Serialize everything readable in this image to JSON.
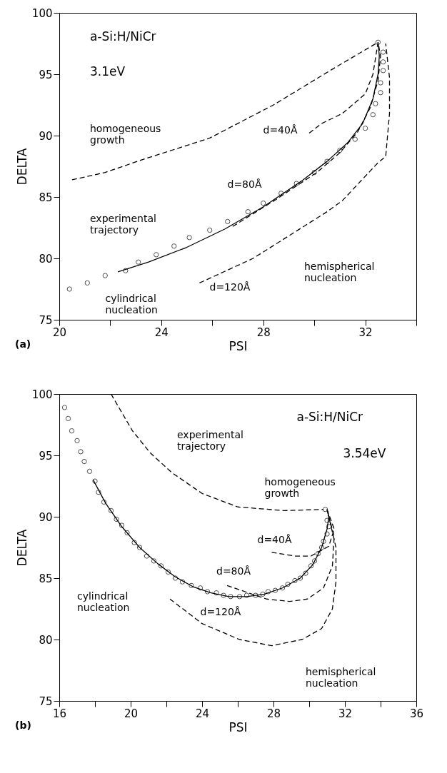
{
  "chart_data": [
    {
      "type": "line",
      "xlabel": "PSI",
      "ylabel": "DELTA",
      "xlim": [
        20,
        34
      ],
      "ylim": [
        75,
        100
      ],
      "xticks": [
        20,
        {
          "value": 22,
          "label": null
        },
        24,
        {
          "value": 26,
          "label": null
        },
        28,
        {
          "value": 30,
          "label": null
        },
        32,
        {
          "value": 34,
          "label": null
        }
      ],
      "yticks": [
        75,
        80,
        85,
        90,
        95,
        100
      ],
      "grid": false,
      "series": [
        {
          "type": "scatter",
          "marker": "circle",
          "color": "#000000",
          "x": [
            20.4,
            21.1,
            21.8,
            22.6,
            23.1,
            23.8,
            24.5,
            25.1,
            25.9,
            26.6,
            27.4,
            28.0,
            28.7,
            29.3,
            30.0,
            30.5,
            31.0,
            31.6,
            32.0,
            32.3,
            32.4,
            32.6,
            32.6,
            32.7,
            32.7,
            32.7,
            32.5
          ],
          "values": [
            77.5,
            78.0,
            78.6,
            79.0,
            79.7,
            80.3,
            81.0,
            81.7,
            82.3,
            83.0,
            83.8,
            84.5,
            85.3,
            86.1,
            87.0,
            87.9,
            88.8,
            89.7,
            90.6,
            91.7,
            92.6,
            93.5,
            94.3,
            95.3,
            96.0,
            96.8,
            97.6
          ]
        },
        {
          "type": "line",
          "line_style": "solid",
          "color": "#000000",
          "x": [
            22.3,
            23.5,
            25.0,
            26.5,
            28.0,
            29.5,
            30.5,
            31.3,
            31.9,
            32.3,
            32.5,
            32.55,
            32.5
          ],
          "values": [
            78.9,
            79.7,
            80.9,
            82.4,
            84.2,
            86.3,
            87.9,
            89.4,
            91.0,
            93.0,
            95.0,
            96.5,
            97.6
          ]
        },
        {
          "type": "line",
          "line_style": "dashed",
          "color": "#000000",
          "x": [
            20.5,
            21.8,
            23.2,
            25.9,
            28.4,
            30.7,
            32.5
          ],
          "values": [
            86.4,
            87.0,
            88.0,
            89.8,
            92.5,
            95.4,
            97.6
          ]
        },
        {
          "type": "line",
          "line_style": "dashed",
          "color": "#000000",
          "x": [
            29.8,
            30.3,
            31.1,
            32.0,
            32.3,
            32.5
          ],
          "values": [
            90.2,
            91.0,
            91.8,
            93.4,
            95.0,
            97.6
          ]
        },
        {
          "type": "line",
          "line_style": "dashed",
          "color": "#000000",
          "x": [
            26.8,
            28.5,
            30.1,
            31.0,
            31.7,
            32.2,
            32.5,
            32.6,
            32.5
          ],
          "values": [
            82.6,
            84.8,
            87.0,
            88.6,
            90.3,
            92.3,
            94.5,
            96.5,
            97.6
          ]
        },
        {
          "type": "line",
          "line_style": "dashed",
          "color": "#000000",
          "x": [
            25.5,
            27.6,
            30.5,
            31.1,
            32.5,
            32.8,
            32.95,
            32.95,
            32.8
          ],
          "values": [
            78.0,
            80.0,
            83.8,
            84.7,
            87.8,
            88.3,
            91.8,
            94.7,
            97.5
          ]
        }
      ],
      "annotations": [
        "a-Si:H/NiCr",
        "3.1eV",
        "homogeneous growth",
        "d=40Å",
        "d=80Å",
        "experimental trajectory",
        "cylindrical nucleation",
        "d=120Å",
        "hemispherical nucleation",
        "(a)"
      ]
    },
    {
      "type": "line",
      "xlabel": "PSI",
      "ylabel": "DELTA",
      "xlim": [
        16,
        36
      ],
      "ylim": [
        75,
        100
      ],
      "xticks": [
        16,
        {
          "value": 18,
          "label": null
        },
        20,
        {
          "value": 22,
          "label": null
        },
        24,
        {
          "value": 26,
          "label": null
        },
        28,
        {
          "value": 30,
          "label": null
        },
        32,
        {
          "value": 34,
          "label": null
        },
        36
      ],
      "yticks": [
        75,
        80,
        85,
        90,
        95,
        100
      ],
      "grid": false,
      "series": [
        {
          "type": "scatter",
          "marker": "circle",
          "color": "#000000",
          "x": [
            16.3,
            16.5,
            16.7,
            17.0,
            17.2,
            17.4,
            17.7,
            18.0,
            18.2,
            18.5,
            18.9,
            19.2,
            19.5,
            19.8,
            20.2,
            20.5,
            20.9,
            21.3,
            21.7,
            22.1,
            22.5,
            22.9,
            23.4,
            23.9,
            24.3,
            24.8,
            25.2,
            25.6,
            26.1,
            26.5,
            27.0,
            27.4,
            27.7,
            28.1,
            28.5,
            28.8,
            29.2,
            29.5,
            29.8,
            30.1,
            30.3,
            30.5,
            30.7,
            30.8,
            31.0,
            31.1,
            31.0,
            30.9
          ],
          "values": [
            98.9,
            98.0,
            97.0,
            96.2,
            95.3,
            94.5,
            93.7,
            92.9,
            92.0,
            91.2,
            90.5,
            89.8,
            89.3,
            88.7,
            87.9,
            87.5,
            86.8,
            86.4,
            86.0,
            85.5,
            85.0,
            84.7,
            84.4,
            84.2,
            83.9,
            83.8,
            83.6,
            83.5,
            83.5,
            83.6,
            83.6,
            83.7,
            83.9,
            84.0,
            84.2,
            84.5,
            84.8,
            85.0,
            85.4,
            86.0,
            86.4,
            87.0,
            87.5,
            88.0,
            88.6,
            89.2,
            89.7,
            90.6
          ]
        },
        {
          "type": "line",
          "line_style": "solid",
          "color": "#000000",
          "x": [
            17.9,
            18.6,
            19.5,
            20.5,
            21.5,
            22.5,
            23.5,
            24.5,
            25.5,
            26.5,
            27.5,
            28.5,
            29.5,
            30.2,
            30.7,
            31.0,
            31.1,
            31.0
          ],
          "values": [
            93.0,
            91.1,
            89.2,
            87.5,
            86.2,
            85.1,
            84.3,
            83.8,
            83.5,
            83.5,
            83.7,
            84.2,
            85.0,
            86.1,
            87.5,
            89.0,
            90.0,
            90.6
          ]
        },
        {
          "type": "line",
          "line_style": "dashed",
          "color": "#000000",
          "x": [
            18.9,
            20.1,
            21.1,
            22.3,
            24.0,
            26.0,
            28.6,
            30.8
          ],
          "values": [
            100.0,
            97.0,
            95.2,
            93.6,
            91.9,
            90.8,
            90.5,
            90.6
          ]
        },
        {
          "type": "line",
          "line_style": "dashed",
          "color": "#000000",
          "x": [
            27.9,
            29.2,
            30.1,
            31.1,
            31.4,
            31.0
          ],
          "values": [
            87.1,
            86.8,
            86.8,
            87.6,
            89.0,
            90.6
          ]
        },
        {
          "type": "line",
          "line_style": "dashed",
          "color": "#000000",
          "x": [
            25.4,
            27.6,
            28.9,
            29.9,
            30.8,
            31.3,
            31.4,
            31.0
          ],
          "values": [
            84.4,
            83.3,
            83.1,
            83.3,
            84.2,
            86.0,
            88.4,
            90.6
          ]
        },
        {
          "type": "line",
          "line_style": "dashed",
          "color": "#000000",
          "x": [
            22.2,
            24.0,
            26.1,
            27.9,
            29.6,
            30.7,
            31.3,
            31.5,
            31.5,
            31.0
          ],
          "values": [
            83.3,
            81.3,
            80.0,
            79.5,
            80.0,
            80.9,
            82.5,
            84.7,
            87.5,
            90.6
          ]
        }
      ],
      "annotations": [
        "a-Si:H/NiCr",
        "3.54eV",
        "experimental trajectory",
        "homogeneous growth",
        "d=40Å",
        "d=80Å",
        "d=120Å",
        "cylindrical nucleation",
        "hemispherical nucleation",
        "(b)"
      ]
    }
  ]
}
